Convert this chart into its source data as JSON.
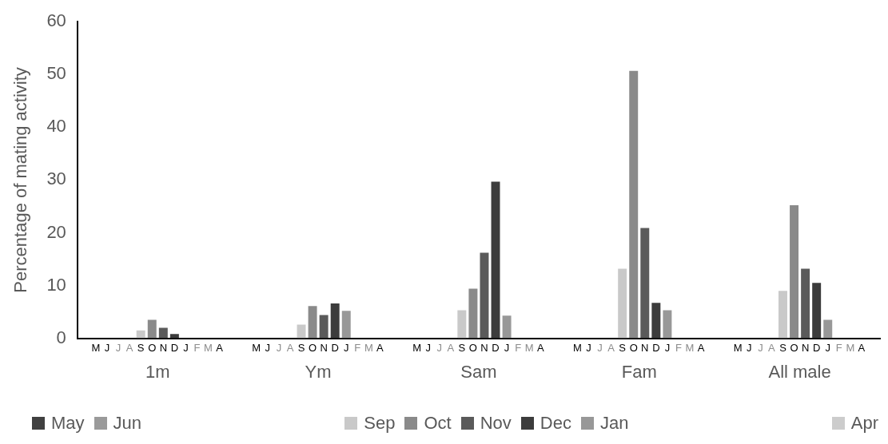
{
  "chart_data": {
    "type": "bar",
    "ylabel": "Percentage of mating activity",
    "categories": [
      "1m",
      "Ym",
      "Sam",
      "Fam",
      "All male"
    ],
    "series": [
      {
        "name": "May",
        "color": "#404040",
        "values": [
          0,
          0,
          0,
          0,
          0
        ]
      },
      {
        "name": "Jun",
        "color": "#9a9a9a",
        "values": [
          0,
          0,
          0,
          0,
          0
        ]
      },
      {
        "color": "#ffffff",
        "values": [
          null,
          null,
          null,
          null,
          null
        ]
      },
      {
        "color": "#ffffff",
        "values": [
          null,
          null,
          null,
          null,
          null
        ]
      },
      {
        "name": "Sep",
        "color": "#c9c9c9",
        "values": [
          1.5,
          2.6,
          5.3,
          13.2,
          9.0
        ]
      },
      {
        "name": "Oct",
        "color": "#8a8a8a",
        "values": [
          3.5,
          6.1,
          9.4,
          50.7,
          25.2
        ]
      },
      {
        "name": "Nov",
        "color": "#5a5a5a",
        "values": [
          2.0,
          4.4,
          16.2,
          20.9,
          13.2
        ]
      },
      {
        "name": "Dec",
        "color": "#3c3c3c",
        "values": [
          0.8,
          6.6,
          29.7,
          6.7,
          10.5
        ]
      },
      {
        "name": "Jan",
        "color": "#989898",
        "values": [
          0,
          5.2,
          4.3,
          5.3,
          3.5
        ]
      },
      {
        "color": "#ffffff",
        "values": [
          null,
          null,
          null,
          null,
          null
        ]
      },
      {
        "color": "#ffffff",
        "values": [
          null,
          null,
          null,
          null,
          null
        ]
      },
      {
        "name": "Apr",
        "color": "#cccccc",
        "values": [
          0,
          0,
          0,
          0,
          0
        ]
      }
    ],
    "annotations": [
      "M",
      "J",
      "J",
      "A",
      "S",
      "O",
      "N",
      "D",
      "J",
      "F",
      "M",
      "A"
    ],
    "ylim": [
      0,
      60
    ],
    "yticks": [
      0,
      10,
      20,
      30,
      40,
      50,
      60
    ],
    "grid": false,
    "legend": "bottom"
  }
}
